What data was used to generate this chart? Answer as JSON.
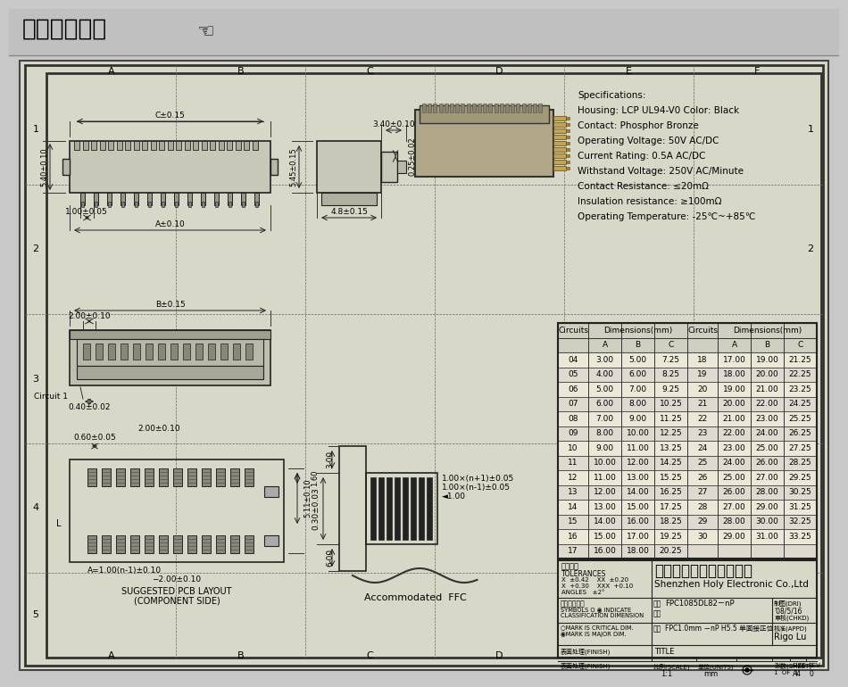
{
  "title": "在线图纸下载",
  "bg_color": "#c8c8c8",
  "paper_color": "#d8d8c8",
  "title_bar_color": "#c0c0c0",
  "specs": [
    "Specifications:",
    "Housing: LCP UL94-V0 Color: Black",
    "Contact: Phosphor Bronze",
    "Operating Voltage: 50V AC/DC",
    "Current Rating: 0.5A AC/DC",
    "Withstand Voltage: 250V AC/Minute",
    "Contact Resistance: ≤20mΩ",
    "Insulation resistance: ≥100mΩ",
    "Operating Temperature: -25℃~+85℃"
  ],
  "grid_cols": [
    "A",
    "B",
    "C",
    "D",
    "E",
    "F"
  ],
  "grid_rows": [
    "1",
    "2",
    "3",
    "4",
    "5"
  ],
  "tbl_circ_l": [
    "04",
    "05",
    "06",
    "07",
    "08",
    "09",
    "10",
    "11",
    "12",
    "13",
    "14",
    "15",
    "16",
    "17"
  ],
  "tbl_A_l": [
    "3.00",
    "4.00",
    "5.00",
    "6.00",
    "7.00",
    "8.00",
    "9.00",
    "10.00",
    "11.00",
    "12.00",
    "13.00",
    "14.00",
    "15.00",
    "16.00"
  ],
  "tbl_B_l": [
    "5.00",
    "6.00",
    "7.00",
    "8.00",
    "9.00",
    "10.00",
    "11.00",
    "12.00",
    "13.00",
    "14.00",
    "15.00",
    "16.00",
    "17.00",
    "18.00"
  ],
  "tbl_C_l": [
    "7.25",
    "8.25",
    "9.25",
    "10.25",
    "11.25",
    "12.25",
    "13.25",
    "14.25",
    "15.25",
    "16.25",
    "17.25",
    "18.25",
    "19.25",
    "20.25"
  ],
  "tbl_circ_r": [
    "18",
    "19",
    "20",
    "21",
    "22",
    "23",
    "24",
    "25",
    "26",
    "27",
    "28",
    "29",
    "30",
    ""
  ],
  "tbl_A_r": [
    "17.00",
    "18.00",
    "19.00",
    "20.00",
    "21.00",
    "22.00",
    "23.00",
    "24.00",
    "25.00",
    "26.00",
    "27.00",
    "28.00",
    "29.00",
    ""
  ],
  "tbl_B_r": [
    "19.00",
    "20.00",
    "21.00",
    "22.00",
    "23.00",
    "24.00",
    "25.00",
    "26.00",
    "27.00",
    "28.00",
    "29.00",
    "30.00",
    "31.00",
    ""
  ],
  "tbl_C_r": [
    "21.25",
    "22.25",
    "23.25",
    "24.25",
    "25.25",
    "26.25",
    "27.25",
    "28.25",
    "29.25",
    "30.25",
    "31.25",
    "32.25",
    "33.25",
    ""
  ],
  "company_cn": "深圳市宏利电子有限公司",
  "company_en": "Shenzhen Holy Electronic Co.,Ltd",
  "part_number": "FPC1085DL82－nP",
  "product_name": "FPC1.0mm －nP H5.5 单面接正位",
  "approver": "Rigo Lu",
  "scale": "1:1",
  "units": "mm",
  "sheet": "1  OF  1",
  "size": "A4",
  "rev": "0",
  "date": "'08/5/16",
  "tolerances_line1": "X  ±0.42    XX  ±0.20",
  "tolerances_line2": "X  +0.30    XXX  +0.10",
  "tolerances_line3": "ANGLES   ±2°"
}
